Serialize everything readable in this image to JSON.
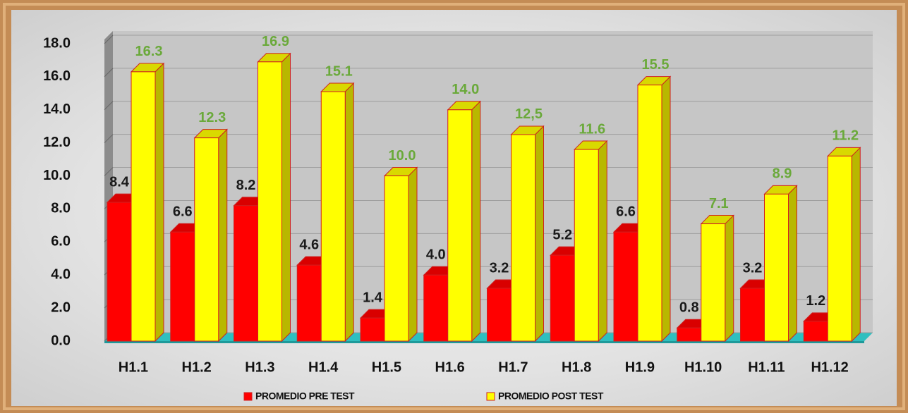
{
  "chart_data": {
    "type": "bar3d",
    "categories": [
      "H1.1",
      "H1.2",
      "H1.3",
      "H1.4",
      "H1.5",
      "H1.6",
      "H1.7",
      "H1.8",
      "H1.9",
      "H1.10",
      "H1.11",
      "H1.12"
    ],
    "series": [
      {
        "name": "PROMEDIO PRE TEST",
        "color": "#ff0000",
        "label_color": "#1a1a1a",
        "values": [
          8.4,
          6.6,
          8.2,
          4.6,
          1.4,
          4.0,
          3.2,
          5.2,
          6.6,
          0.8,
          3.2,
          1.2
        ],
        "value_labels": [
          "8.4",
          "6.6",
          "8.2",
          "4.6",
          "1.4",
          "4.0",
          "3.2",
          "5.2",
          "6.6",
          "0.8",
          "3.2",
          "1.2"
        ]
      },
      {
        "name": "PROMEDIO POST TEST",
        "color": "#ffff00",
        "label_color": "#6aa93a",
        "values": [
          16.3,
          12.3,
          16.9,
          15.1,
          10.0,
          14.0,
          12.5,
          11.6,
          15.5,
          7.1,
          8.9,
          11.2
        ],
        "value_labels": [
          "16.3",
          "12.3",
          "16.9",
          "15.1",
          "10.0",
          "14.0",
          "12,5",
          "11.6",
          "15.5",
          "7.1",
          "8.9",
          "11.2"
        ]
      }
    ],
    "ylim": [
      0,
      18
    ],
    "yticks": [
      {
        "value": 0,
        "label": "0.0"
      },
      {
        "value": 2,
        "label": "2.0"
      },
      {
        "value": 4,
        "label": "4.0"
      },
      {
        "value": 6,
        "label": "6.0"
      },
      {
        "value": 8,
        "label": "8.0"
      },
      {
        "value": 10,
        "label": "10.0"
      },
      {
        "value": 12,
        "label": "12.0"
      },
      {
        "value": 14,
        "label": "14.0"
      },
      {
        "value": 16,
        "label": "16.0"
      },
      {
        "value": 18,
        "label": "18.0"
      }
    ],
    "grid": true,
    "legend": "bottom"
  }
}
